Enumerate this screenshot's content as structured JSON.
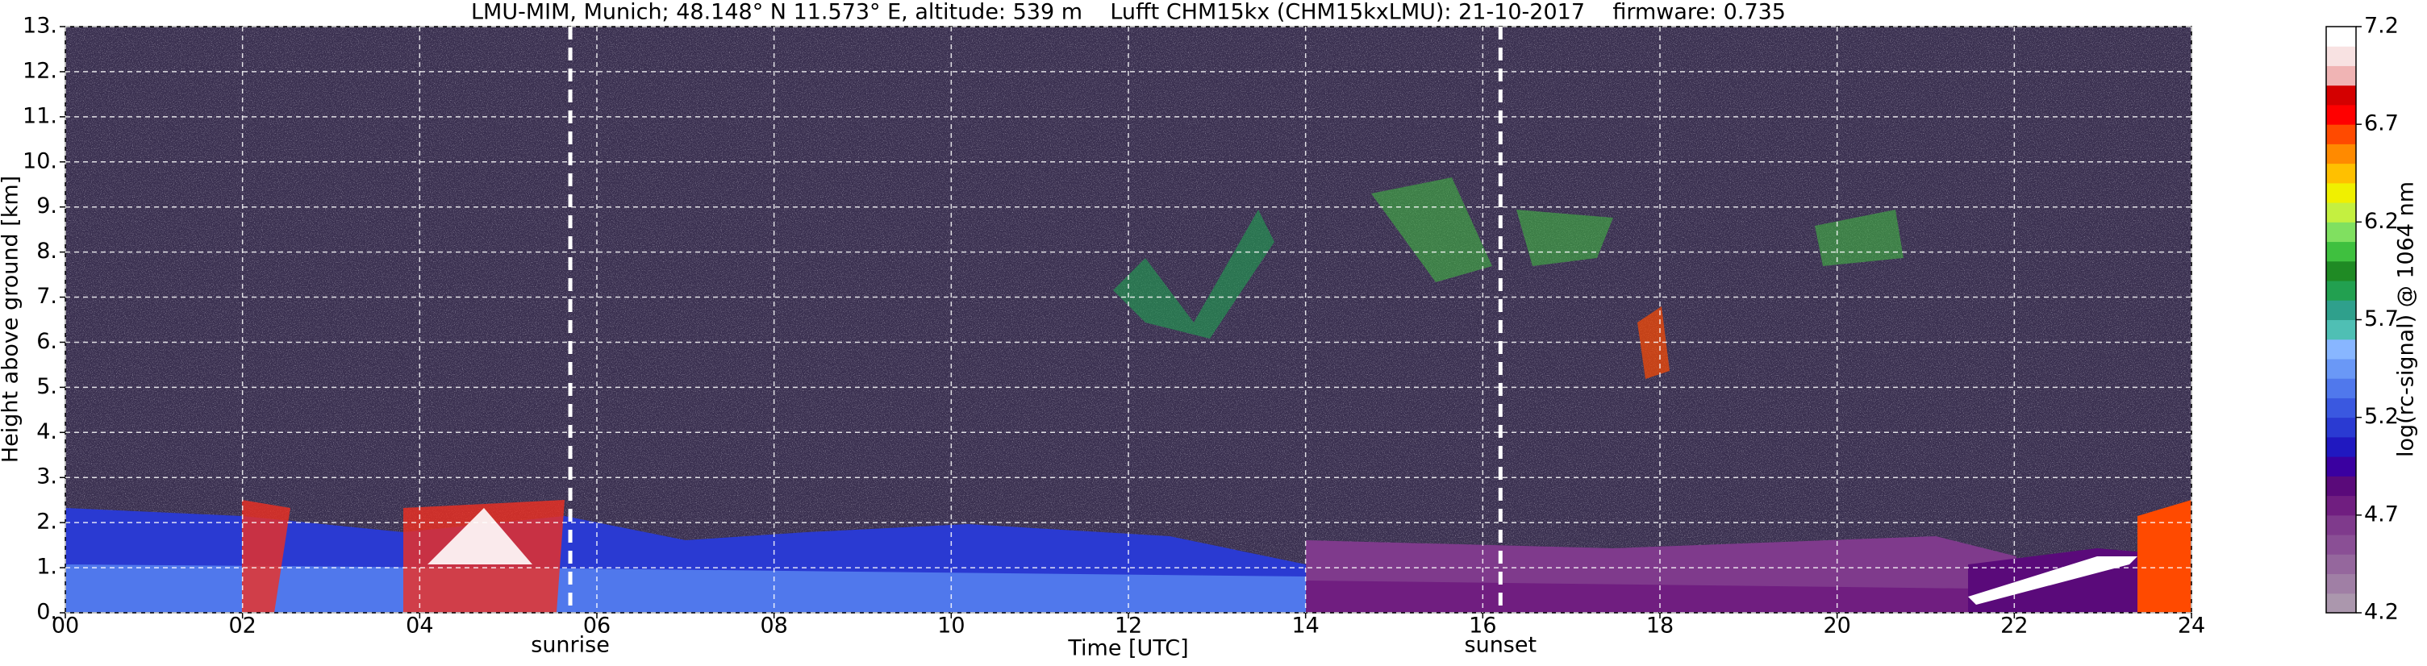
{
  "chart_data": {
    "type": "heatmap",
    "title": "LMU-MIM, Munich; 48.148° N 11.573° E, altitude: 539 m    Lufft CHM15kx (CHM15kxLMU): 21-10-2017    firmware: 0.735",
    "x_label": "Time [UTC]",
    "y_label": "Height above ground [km]",
    "colorbar_label": "log(rc-signal) @ 1064 nm",
    "xlim": [
      0,
      24
    ],
    "xticks": [
      {
        "value": 0,
        "label": "00"
      },
      {
        "value": 2,
        "label": "02"
      },
      {
        "value": 4,
        "label": "04"
      },
      {
        "value": 6,
        "label": "06"
      },
      {
        "value": 8,
        "label": "08"
      },
      {
        "value": 10,
        "label": "10"
      },
      {
        "value": 12,
        "label": "12"
      },
      {
        "value": 14,
        "label": "14"
      },
      {
        "value": 16,
        "label": "16"
      },
      {
        "value": 18,
        "label": "18"
      },
      {
        "value": 20,
        "label": "20"
      },
      {
        "value": 22,
        "label": "22"
      },
      {
        "value": 24,
        "label": "24"
      }
    ],
    "ylim": [
      0,
      13
    ],
    "yticks": [
      {
        "value": 0,
        "label": "0."
      },
      {
        "value": 1,
        "label": "1."
      },
      {
        "value": 2,
        "label": "2."
      },
      {
        "value": 3,
        "label": "3."
      },
      {
        "value": 4,
        "label": "4."
      },
      {
        "value": 5,
        "label": "5."
      },
      {
        "value": 6,
        "label": "6."
      },
      {
        "value": 7,
        "label": "7."
      },
      {
        "value": 8,
        "label": "8."
      },
      {
        "value": 9,
        "label": "9."
      },
      {
        "value": 10,
        "label": "10."
      },
      {
        "value": 11,
        "label": "11."
      },
      {
        "value": 12,
        "label": "12."
      },
      {
        "value": 13,
        "label": "13."
      }
    ],
    "grid": true,
    "annotations": [
      {
        "text": "sunrise",
        "x": 5.7
      },
      {
        "text": "sunset",
        "x": 16.2
      }
    ],
    "colorbar_lim": [
      4.2,
      7.2
    ],
    "colorbar_ticks": [
      4.2,
      4.7,
      5.2,
      5.7,
      6.2,
      6.7,
      7.2
    ],
    "colorbar_colors": [
      "#ab97ad",
      "#a07fa5",
      "#95679d",
      "#8a4f95",
      "#7f3a8c",
      "#701e80",
      "#5a0a7a",
      "#3a00a0",
      "#2018c0",
      "#2a3ad2",
      "#3a58e0",
      "#5078ec",
      "#6a98f6",
      "#88b6ff",
      "#4fbfb4",
      "#2fa08c",
      "#22a050",
      "#1f8a24",
      "#3fc03f",
      "#80e060",
      "#c4f040",
      "#f0f000",
      "#ffc000",
      "#ff8a00",
      "#ff4a00",
      "#ff0000",
      "#d40000",
      "#f0b4b4",
      "#f8e2e2",
      "#ffffff"
    ]
  }
}
